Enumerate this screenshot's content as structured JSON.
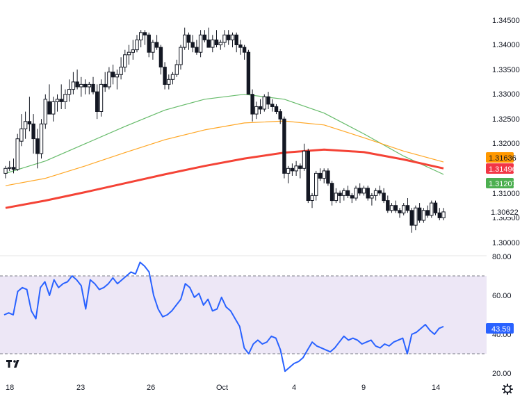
{
  "chart_data": [
    {
      "type": "candlestick",
      "panel": "price",
      "title": "",
      "ylim": [
        1.2975,
        1.3475
      ],
      "x_ticks": [
        "18",
        "23",
        "26",
        "Oct",
        "4",
        "9",
        "14"
      ],
      "y_ticks": [
        "1.34500",
        "1.34000",
        "1.33500",
        "1.33000",
        "1.32500",
        "1.32000",
        "1.31000",
        "1.30500",
        "1.30000"
      ],
      "candles_ohlc": [
        [
          1.314,
          1.3155,
          1.313,
          1.315
        ],
        [
          1.315,
          1.3165,
          1.3145,
          1.3152
        ],
        [
          1.3152,
          1.317,
          1.314,
          1.3148
        ],
        [
          1.3148,
          1.322,
          1.3145,
          1.321
        ],
        [
          1.3205,
          1.326,
          1.3195,
          1.323
        ],
        [
          1.323,
          1.3265,
          1.321,
          1.3245
        ],
        [
          1.3245,
          1.3295,
          1.3225,
          1.324
        ],
        [
          1.324,
          1.326,
          1.318,
          1.321
        ],
        [
          1.321,
          1.323,
          1.315,
          1.318
        ],
        [
          1.318,
          1.325,
          1.317,
          1.324
        ],
        [
          1.324,
          1.33,
          1.323,
          1.329
        ],
        [
          1.3285,
          1.332,
          1.326,
          1.326
        ],
        [
          1.326,
          1.3295,
          1.3245,
          1.3285
        ],
        [
          1.3285,
          1.33,
          1.3265,
          1.329
        ],
        [
          1.329,
          1.332,
          1.327,
          1.3285
        ],
        [
          1.3285,
          1.331,
          1.327,
          1.33
        ],
        [
          1.33,
          1.333,
          1.3285,
          1.331
        ],
        [
          1.331,
          1.3345,
          1.33,
          1.3325
        ],
        [
          1.3325,
          1.335,
          1.331,
          1.3315
        ],
        [
          1.3315,
          1.3335,
          1.3295,
          1.332
        ],
        [
          1.332,
          1.333,
          1.33,
          1.3315
        ],
        [
          1.3315,
          1.3325,
          1.33,
          1.332
        ],
        [
          1.332,
          1.3335,
          1.33,
          1.3305
        ],
        [
          1.3305,
          1.332,
          1.325,
          1.3265
        ],
        [
          1.3265,
          1.333,
          1.3255,
          1.332
        ],
        [
          1.332,
          1.3345,
          1.3305,
          1.3315
        ],
        [
          1.3315,
          1.3355,
          1.331,
          1.3345
        ],
        [
          1.3345,
          1.336,
          1.332,
          1.3335
        ],
        [
          1.3335,
          1.335,
          1.331,
          1.334
        ],
        [
          1.334,
          1.3375,
          1.333,
          1.3355
        ],
        [
          1.3355,
          1.339,
          1.3345,
          1.338
        ],
        [
          1.338,
          1.34,
          1.336,
          1.3385
        ],
        [
          1.3385,
          1.341,
          1.337,
          1.339
        ],
        [
          1.339,
          1.342,
          1.3385,
          1.341
        ],
        [
          1.341,
          1.343,
          1.3395,
          1.3425
        ],
        [
          1.3425,
          1.343,
          1.34,
          1.342
        ],
        [
          1.342,
          1.3425,
          1.3375,
          1.3385
        ],
        [
          1.3385,
          1.341,
          1.337,
          1.3405
        ],
        [
          1.3405,
          1.342,
          1.339,
          1.3395
        ],
        [
          1.3395,
          1.34,
          1.334,
          1.3355
        ],
        [
          1.3355,
          1.3365,
          1.331,
          1.332
        ],
        [
          1.332,
          1.334,
          1.331,
          1.333
        ],
        [
          1.333,
          1.3345,
          1.332,
          1.334
        ],
        [
          1.334,
          1.337,
          1.3335,
          1.336
        ],
        [
          1.336,
          1.34,
          1.335,
          1.3395
        ],
        [
          1.3395,
          1.3435,
          1.339,
          1.342
        ],
        [
          1.342,
          1.3425,
          1.339,
          1.3405
        ],
        [
          1.3405,
          1.342,
          1.3385,
          1.3395
        ],
        [
          1.3395,
          1.341,
          1.338,
          1.3385
        ],
        [
          1.3385,
          1.343,
          1.3375,
          1.342
        ],
        [
          1.342,
          1.343,
          1.3405,
          1.341
        ],
        [
          1.341,
          1.3435,
          1.3405,
          1.3395
        ],
        [
          1.3395,
          1.342,
          1.3385,
          1.341
        ],
        [
          1.341,
          1.343,
          1.3395,
          1.34
        ],
        [
          1.34,
          1.341,
          1.339,
          1.3405
        ],
        [
          1.3405,
          1.343,
          1.3395,
          1.342
        ],
        [
          1.342,
          1.343,
          1.34,
          1.341
        ],
        [
          1.341,
          1.3425,
          1.3395,
          1.342
        ],
        [
          1.342,
          1.3425,
          1.3385,
          1.34
        ],
        [
          1.34,
          1.341,
          1.338,
          1.3395
        ],
        [
          1.3395,
          1.34,
          1.337,
          1.3385
        ],
        [
          1.3385,
          1.339,
          1.334,
          1.33
        ],
        [
          1.33,
          1.331,
          1.3245,
          1.326
        ],
        [
          1.326,
          1.3285,
          1.325,
          1.3275
        ],
        [
          1.3275,
          1.329,
          1.326,
          1.327
        ],
        [
          1.327,
          1.33,
          1.3265,
          1.3295
        ],
        [
          1.3295,
          1.3305,
          1.327,
          1.328
        ],
        [
          1.328,
          1.329,
          1.3265,
          1.3275
        ],
        [
          1.3275,
          1.328,
          1.326,
          1.3265
        ],
        [
          1.3265,
          1.327,
          1.324,
          1.325
        ],
        [
          1.325,
          1.3255,
          1.313,
          1.314
        ],
        [
          1.314,
          1.3155,
          1.312,
          1.315
        ],
        [
          1.315,
          1.316,
          1.3135,
          1.3145
        ],
        [
          1.3145,
          1.3165,
          1.3135,
          1.3155
        ],
        [
          1.3155,
          1.316,
          1.313,
          1.315
        ],
        [
          1.315,
          1.32,
          1.3145,
          1.3185
        ],
        [
          1.3185,
          1.319,
          1.308,
          1.3085
        ],
        [
          1.3085,
          1.31,
          1.307,
          1.3095
        ],
        [
          1.3095,
          1.3145,
          1.3085,
          1.314
        ],
        [
          1.314,
          1.315,
          1.3125,
          1.313
        ],
        [
          1.313,
          1.315,
          1.312,
          1.3145
        ],
        [
          1.3145,
          1.315,
          1.3115,
          1.312
        ],
        [
          1.312,
          1.3125,
          1.3075,
          1.3085
        ],
        [
          1.3085,
          1.311,
          1.308,
          1.31
        ],
        [
          1.31,
          1.3105,
          1.308,
          1.3095
        ],
        [
          1.3095,
          1.311,
          1.3085,
          1.3105
        ],
        [
          1.3105,
          1.3115,
          1.309,
          1.3095
        ],
        [
          1.3095,
          1.31,
          1.308,
          1.309
        ],
        [
          1.309,
          1.3115,
          1.3085,
          1.311
        ],
        [
          1.311,
          1.312,
          1.3095,
          1.31
        ],
        [
          1.31,
          1.3115,
          1.3095,
          1.311
        ],
        [
          1.311,
          1.3115,
          1.3085,
          1.309
        ],
        [
          1.309,
          1.31,
          1.3075,
          1.3095
        ],
        [
          1.3095,
          1.311,
          1.3085,
          1.3105
        ],
        [
          1.3105,
          1.3115,
          1.3095,
          1.31
        ],
        [
          1.31,
          1.311,
          1.308,
          1.3085
        ],
        [
          1.3085,
          1.3095,
          1.306,
          1.3065
        ],
        [
          1.3065,
          1.308,
          1.306,
          1.3075
        ],
        [
          1.3075,
          1.3085,
          1.306,
          1.3065
        ],
        [
          1.3065,
          1.307,
          1.305,
          1.306
        ],
        [
          1.306,
          1.308,
          1.3055,
          1.3075
        ],
        [
          1.3075,
          1.309,
          1.306,
          1.3065
        ],
        [
          1.3065,
          1.307,
          1.302,
          1.3035
        ],
        [
          1.3035,
          1.3075,
          1.3025,
          1.307
        ],
        [
          1.307,
          1.308,
          1.304,
          1.3045
        ],
        [
          1.3045,
          1.307,
          1.304,
          1.3065
        ],
        [
          1.3065,
          1.3075,
          1.305,
          1.3055
        ],
        [
          1.3055,
          1.3085,
          1.305,
          1.308
        ],
        [
          1.308,
          1.3085,
          1.3055,
          1.306
        ],
        [
          1.306,
          1.307,
          1.3045,
          1.305
        ],
        [
          1.305,
          1.307,
          1.3045,
          1.3062
        ]
      ],
      "moving_averages": [
        {
          "color": "#66bb6a",
          "values": [
            1.314,
            1.3165,
            1.32,
            1.3235,
            1.3268,
            1.329,
            1.33,
            1.329,
            1.3262,
            1.322,
            1.3175,
            1.3138
          ]
        },
        {
          "color": "#ffa726",
          "values": [
            1.3115,
            1.313,
            1.3155,
            1.3182,
            1.3208,
            1.3228,
            1.3242,
            1.3246,
            1.3238,
            1.3212,
            1.3185,
            1.3163
          ]
        },
        {
          "color": "#f44336",
          "values": [
            1.307,
            1.3085,
            1.3102,
            1.312,
            1.3138,
            1.3155,
            1.317,
            1.3182,
            1.3188,
            1.3183,
            1.3168,
            1.315
          ]
        }
      ],
      "price_labels": [
        {
          "text": "1.31636",
          "color": "#ff9800"
        },
        {
          "text": "1.31496",
          "color": "#f23645"
        },
        {
          "text": "1.31207",
          "color": "#4caf50"
        },
        {
          "text": "1.30622",
          "color": "#ffffff"
        }
      ]
    },
    {
      "type": "line",
      "panel": "rsi",
      "title": "",
      "ylim": [
        15,
        85
      ],
      "y_ticks": [
        "80.00",
        "60.00",
        "40.00",
        "20.00"
      ],
      "band": [
        30,
        70
      ],
      "line_color": "#2962ff",
      "band_color": "#ede7f6",
      "values": [
        50,
        51,
        50,
        62,
        64,
        63,
        52,
        48,
        64,
        67,
        60,
        68,
        64,
        66,
        67,
        70,
        68,
        65,
        53,
        68,
        66,
        63,
        64,
        66,
        69,
        66,
        68,
        70,
        72,
        71,
        77,
        75,
        72,
        60,
        53,
        49,
        50,
        52,
        55,
        58,
        66,
        64,
        59,
        61,
        55,
        58,
        52,
        53,
        59,
        54,
        52,
        48,
        44,
        33,
        30,
        35,
        37,
        35,
        36,
        39,
        38,
        32,
        21,
        23,
        25,
        26,
        28,
        32,
        36,
        34,
        33,
        32,
        31,
        33,
        36,
        39,
        37,
        38,
        37,
        35,
        36,
        37,
        34,
        33,
        35,
        34,
        36,
        37,
        38,
        30,
        40,
        41,
        43,
        45,
        42,
        40,
        43,
        44
      ]
    }
  ],
  "axis": {
    "x_labels": [
      "18",
      "23",
      "26",
      "Oct",
      "4",
      "9",
      "14"
    ],
    "price_ticks": [
      "1.34500",
      "1.34000",
      "1.33500",
      "1.33000",
      "1.32500",
      "1.32000",
      "1.31000",
      "1.30500",
      "1.30000"
    ],
    "rsi_ticks": [
      "80.00",
      "60.00",
      "40.00",
      "20.00"
    ]
  },
  "rsi_label": {
    "text": "43.59",
    "color": "#2962ff"
  },
  "logo": {
    "text": "17"
  },
  "icons": {
    "settings": "gear-icon"
  }
}
